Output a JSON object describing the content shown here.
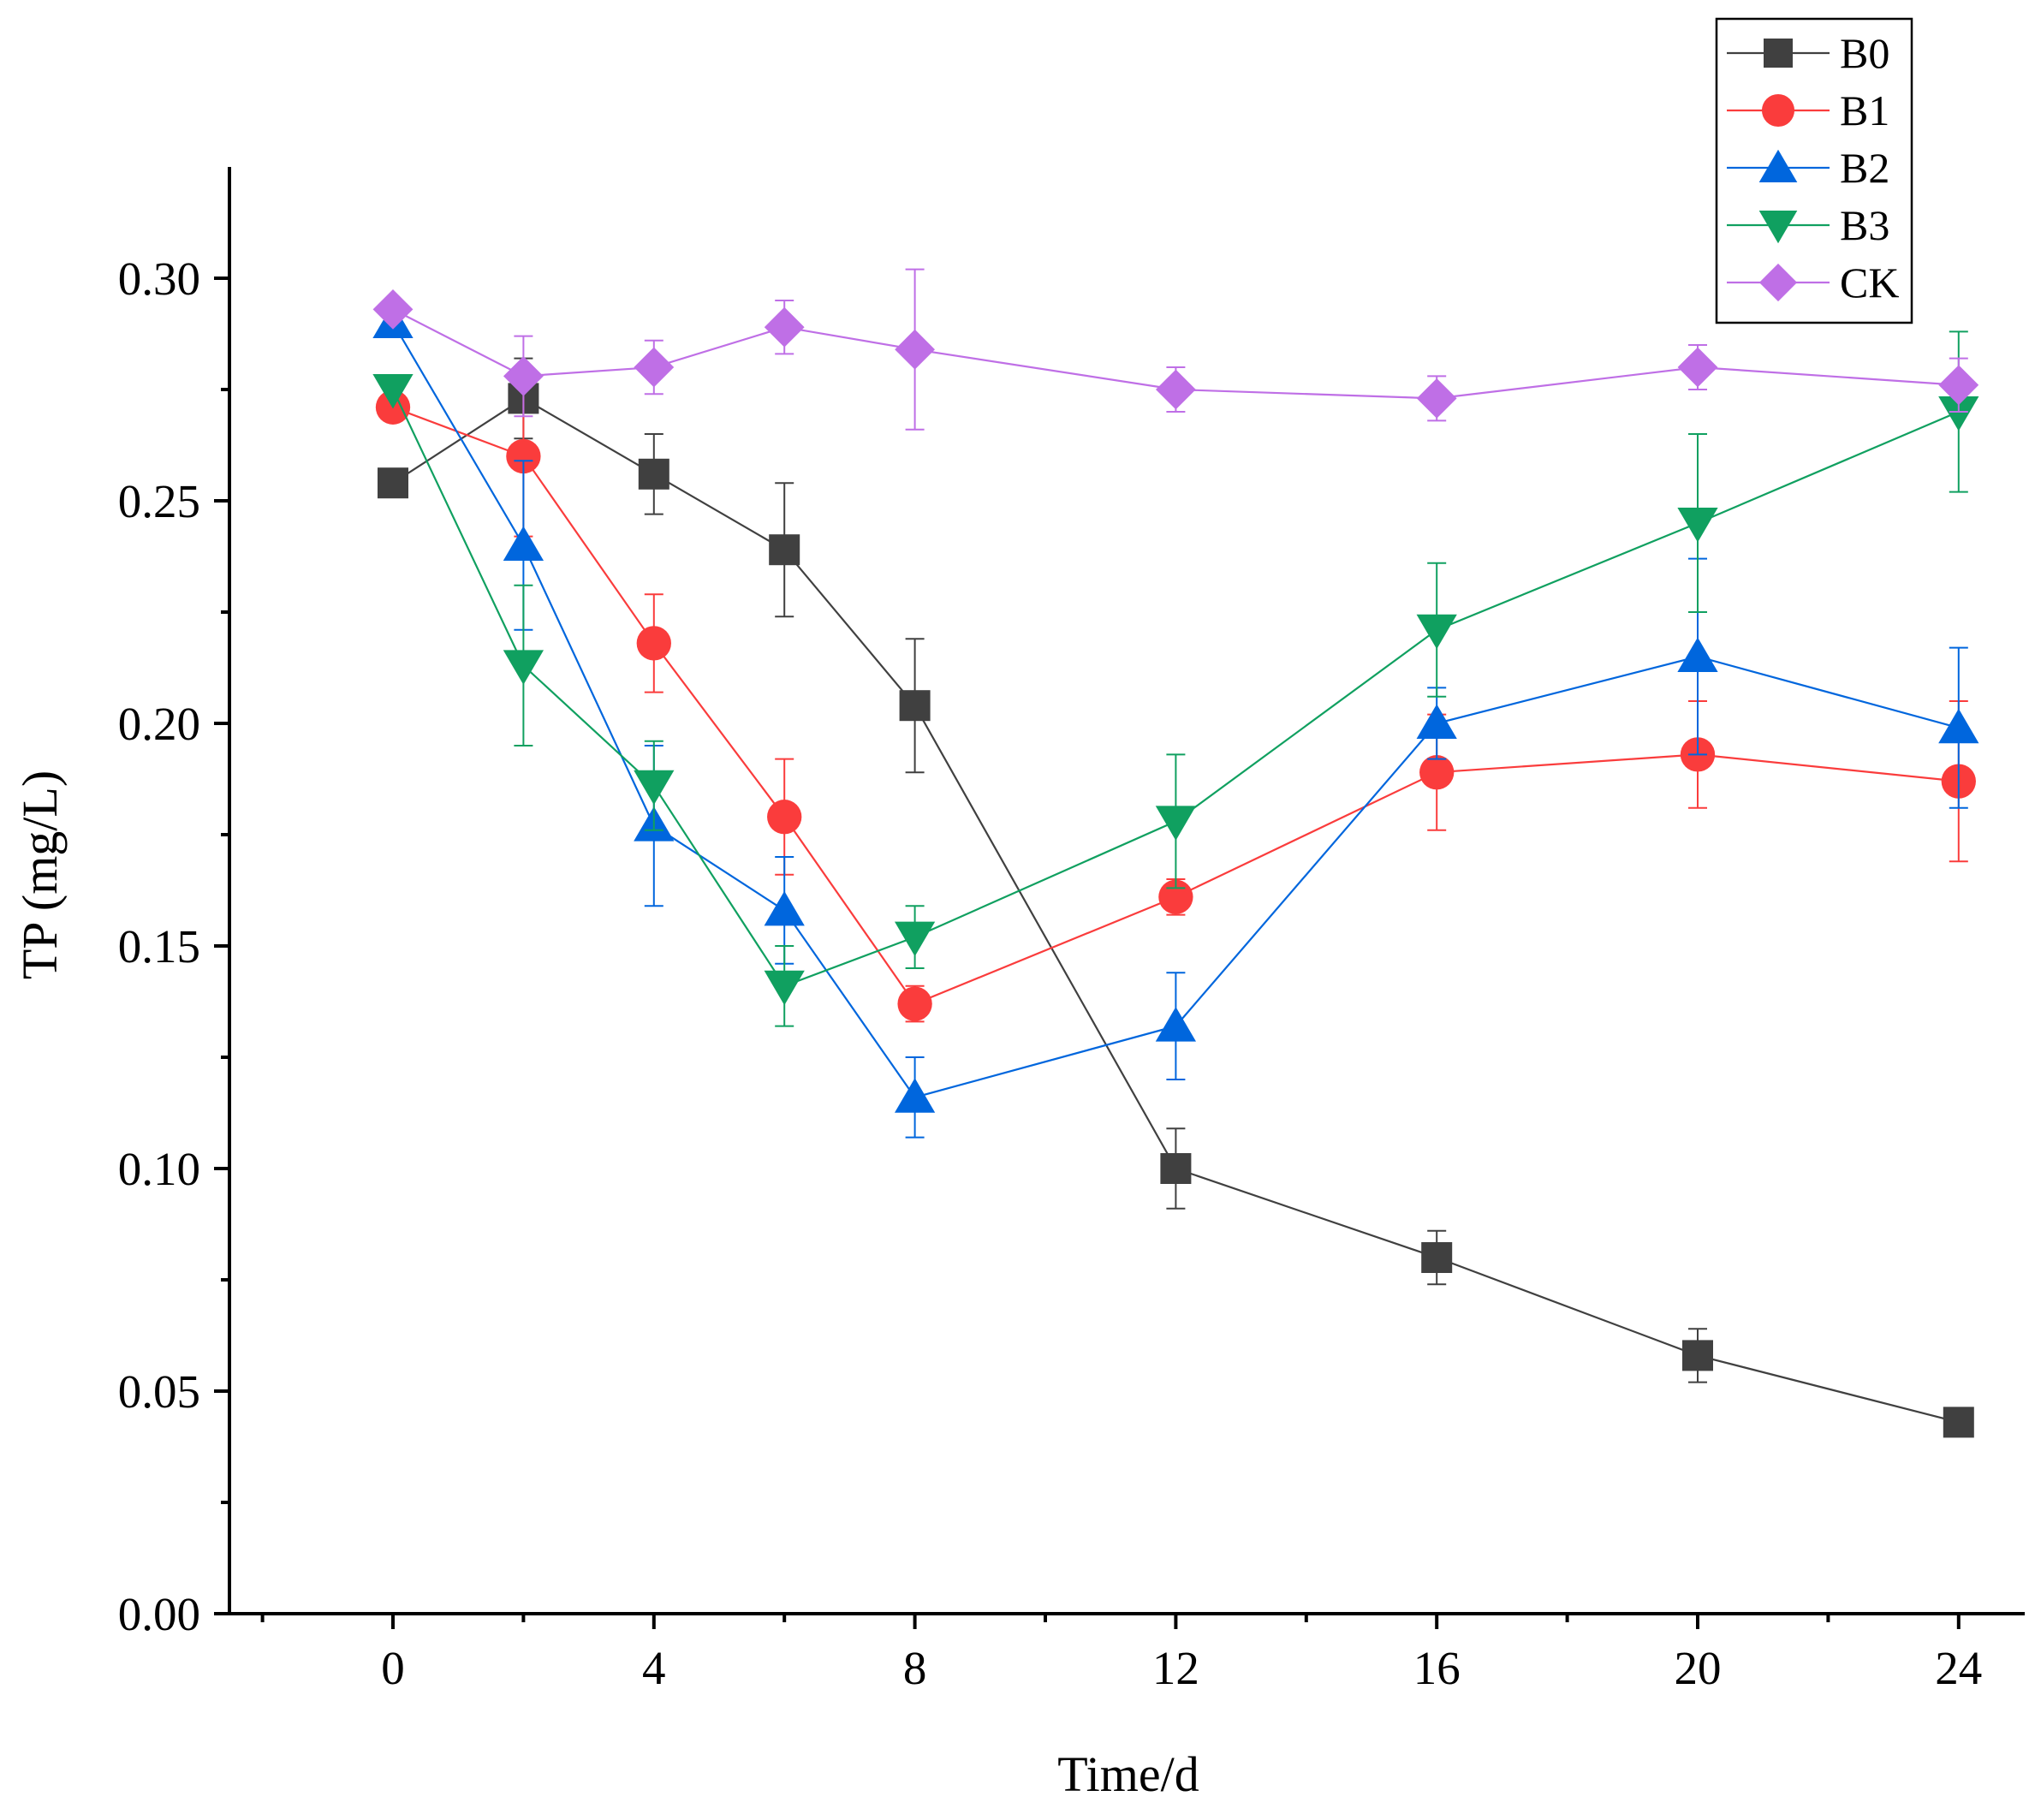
{
  "chart_data": {
    "type": "line",
    "title": "",
    "xlabel": "Time/d",
    "ylabel": "TP (mg/L)",
    "xlim": [
      -2.5,
      25.2
    ],
    "ylim": [
      0,
      0.325
    ],
    "x_ticks": [
      0,
      4,
      8,
      12,
      16,
      20,
      24
    ],
    "x_tick_labels": [
      "0",
      "4",
      "8",
      "12",
      "16",
      "20",
      "24"
    ],
    "y_ticks": [
      0.0,
      0.05,
      0.1,
      0.15,
      0.2,
      0.25,
      0.3
    ],
    "y_tick_labels": [
      "0.00",
      "0.05",
      "0.10",
      "0.15",
      "0.20",
      "0.25",
      "0.30"
    ],
    "grid": false,
    "legend_position": "top-right",
    "x": [
      0,
      2,
      4,
      6,
      8,
      12,
      16,
      20,
      24
    ],
    "series": [
      {
        "name": "B0",
        "color": "#404040",
        "marker": "square",
        "values": [
          0.254,
          0.273,
          0.256,
          0.239,
          0.204,
          0.1,
          0.08,
          0.058,
          0.043
        ],
        "errors": [
          0,
          0.009,
          0.009,
          0.015,
          0.015,
          0.009,
          0.006,
          0.006,
          0
        ]
      },
      {
        "name": "B1",
        "color": "#fa3c3c",
        "marker": "circle",
        "values": [
          0.271,
          0.26,
          0.218,
          0.179,
          0.137,
          0.161,
          0.189,
          0.193,
          0.187
        ],
        "errors": [
          0,
          0.018,
          0.011,
          0.013,
          0.004,
          0.004,
          0.013,
          0.012,
          0.018
        ]
      },
      {
        "name": "B2",
        "color": "#0066dd",
        "marker": "triangle-up",
        "values": [
          0.29,
          0.24,
          0.177,
          0.158,
          0.116,
          0.132,
          0.2,
          0.215,
          0.199
        ],
        "errors": [
          0,
          0.019,
          0.018,
          0.012,
          0.009,
          0.012,
          0.008,
          0.022,
          0.018
        ]
      },
      {
        "name": "B3",
        "color": "#10a060",
        "marker": "triangle-down",
        "values": [
          0.275,
          0.213,
          0.186,
          0.141,
          0.152,
          0.178,
          0.221,
          0.245,
          0.27
        ],
        "errors": [
          0,
          0.018,
          0.01,
          0.009,
          0.007,
          0.015,
          0.015,
          0.02,
          0.018
        ]
      },
      {
        "name": "CK",
        "color": "#bf6fe6",
        "marker": "diamond",
        "values": [
          0.293,
          0.278,
          0.28,
          0.289,
          0.284,
          0.275,
          0.273,
          0.28,
          0.276
        ],
        "errors": [
          0,
          0.009,
          0.006,
          0.006,
          0.018,
          0.005,
          0.005,
          0.005,
          0.006
        ]
      }
    ]
  }
}
